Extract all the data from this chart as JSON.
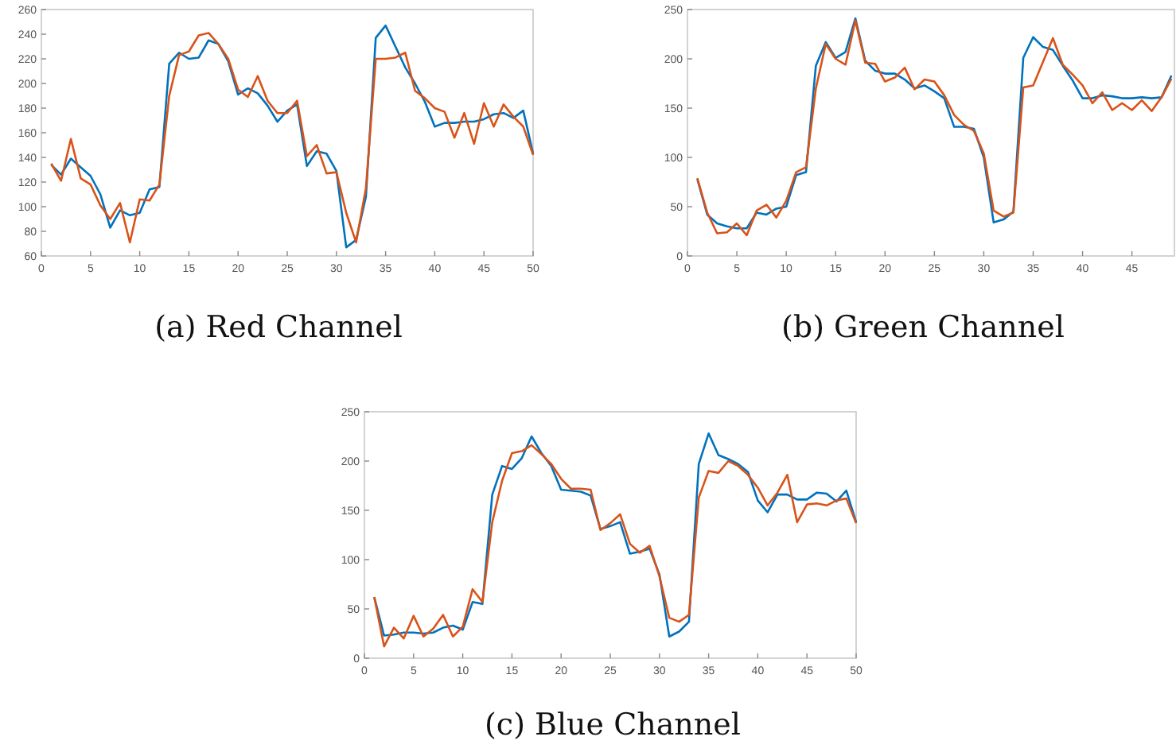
{
  "chart_data": [
    {
      "type": "line",
      "title": "(a) Red Channel",
      "x": [
        1,
        2,
        3,
        4,
        5,
        6,
        7,
        8,
        9,
        10,
        11,
        12,
        13,
        14,
        15,
        16,
        17,
        18,
        19,
        20,
        21,
        22,
        23,
        24,
        25,
        26,
        27,
        28,
        29,
        30,
        31,
        32,
        33,
        34,
        35,
        36,
        37,
        38,
        39,
        40,
        41,
        42,
        43,
        44,
        45,
        46,
        47,
        48,
        49,
        50
      ],
      "xlim": [
        0,
        50
      ],
      "xticks": [
        0,
        5,
        10,
        15,
        20,
        25,
        30,
        35,
        40,
        45,
        50
      ],
      "ylim": [
        60,
        260
      ],
      "yticks": [
        60,
        80,
        100,
        120,
        140,
        160,
        180,
        200,
        220,
        240,
        260
      ],
      "series": [
        {
          "color": "#0072bd",
          "values": [
            134,
            126,
            139,
            132,
            125,
            110,
            83,
            97,
            93,
            95,
            114,
            116,
            216,
            225,
            220,
            221,
            235,
            232,
            218,
            191,
            196,
            192,
            182,
            169,
            178,
            183,
            133,
            145,
            143,
            129,
            67,
            73,
            108,
            237,
            247,
            230,
            213,
            200,
            185,
            165,
            168,
            168,
            169,
            169,
            171,
            175,
            176,
            172,
            178,
            143
          ]
        },
        {
          "color": "#d95319",
          "values": [
            135,
            121,
            155,
            123,
            118,
            101,
            90,
            103,
            71,
            106,
            105,
            118,
            190,
            223,
            226,
            239,
            241,
            232,
            220,
            195,
            189,
            206,
            186,
            176,
            176,
            186,
            141,
            150,
            127,
            128,
            95,
            71,
            115,
            220,
            220,
            221,
            225,
            194,
            188,
            180,
            177,
            156,
            176,
            151,
            184,
            165,
            183,
            173,
            165,
            142
          ]
        }
      ]
    },
    {
      "type": "line",
      "title": "(b) Green Channel",
      "x": [
        1,
        2,
        3,
        4,
        5,
        6,
        7,
        8,
        9,
        10,
        11,
        12,
        13,
        14,
        15,
        16,
        17,
        18,
        19,
        20,
        21,
        22,
        23,
        24,
        25,
        26,
        27,
        28,
        29,
        30,
        31,
        32,
        33,
        34,
        35,
        36,
        37,
        38,
        39,
        40,
        41,
        42,
        43,
        44,
        45,
        46,
        47,
        48,
        49
      ],
      "xlim": [
        0,
        49.3
      ],
      "xticks": [
        0,
        5,
        10,
        15,
        20,
        25,
        30,
        35,
        40,
        45
      ],
      "ylim": [
        0,
        250
      ],
      "yticks": [
        0,
        50,
        100,
        150,
        200,
        250
      ],
      "series": [
        {
          "color": "#0072bd",
          "values": [
            78,
            42,
            33,
            30,
            28,
            28,
            44,
            42,
            48,
            50,
            82,
            85,
            193,
            217,
            201,
            207,
            241,
            198,
            188,
            185,
            185,
            179,
            170,
            173,
            167,
            160,
            131,
            131,
            129,
            100,
            34,
            37,
            45,
            201,
            222,
            212,
            209,
            193,
            178,
            160,
            160,
            163,
            162,
            160,
            160,
            161,
            160,
            161,
            183
          ]
        },
        {
          "color": "#d95319",
          "values": [
            79,
            44,
            23,
            24,
            33,
            21,
            46,
            52,
            39,
            56,
            85,
            90,
            170,
            215,
            200,
            194,
            239,
            196,
            195,
            177,
            181,
            191,
            169,
            179,
            177,
            163,
            143,
            133,
            127,
            104,
            46,
            40,
            44,
            171,
            173,
            197,
            221,
            194,
            184,
            173,
            155,
            166,
            148,
            155,
            148,
            158,
            147,
            161,
            180
          ]
        }
      ]
    },
    {
      "type": "line",
      "title": "(c) Blue Channel",
      "x": [
        1,
        2,
        3,
        4,
        5,
        6,
        7,
        8,
        9,
        10,
        11,
        12,
        13,
        14,
        15,
        16,
        17,
        18,
        19,
        20,
        21,
        22,
        23,
        24,
        25,
        26,
        27,
        28,
        29,
        30,
        31,
        32,
        33,
        34,
        35,
        36,
        37,
        38,
        39,
        40,
        41,
        42,
        43,
        44,
        45,
        46,
        47,
        48,
        49,
        50
      ],
      "xlim": [
        0,
        50
      ],
      "xticks": [
        0,
        5,
        10,
        15,
        20,
        25,
        30,
        35,
        40,
        45,
        50
      ],
      "ylim": [
        0,
        250
      ],
      "yticks": [
        0,
        50,
        100,
        150,
        200,
        250
      ],
      "series": [
        {
          "color": "#0072bd",
          "values": [
            62,
            23,
            24,
            26,
            26,
            25,
            26,
            31,
            33,
            29,
            57,
            55,
            166,
            195,
            192,
            203,
            225,
            208,
            195,
            171,
            170,
            169,
            165,
            131,
            134,
            138,
            106,
            108,
            111,
            85,
            22,
            27,
            37,
            197,
            228,
            206,
            202,
            197,
            189,
            160,
            148,
            166,
            166,
            161,
            161,
            168,
            167,
            159,
            170,
            138
          ]
        },
        {
          "color": "#d95319",
          "values": [
            62,
            12,
            31,
            20,
            43,
            22,
            30,
            44,
            22,
            32,
            70,
            57,
            138,
            180,
            208,
            210,
            216,
            207,
            197,
            182,
            172,
            172,
            171,
            130,
            137,
            146,
            116,
            107,
            114,
            83,
            41,
            37,
            44,
            163,
            190,
            188,
            200,
            195,
            186,
            173,
            155,
            168,
            186,
            138,
            156,
            157,
            155,
            160,
            162,
            137
          ]
        }
      ]
    }
  ]
}
